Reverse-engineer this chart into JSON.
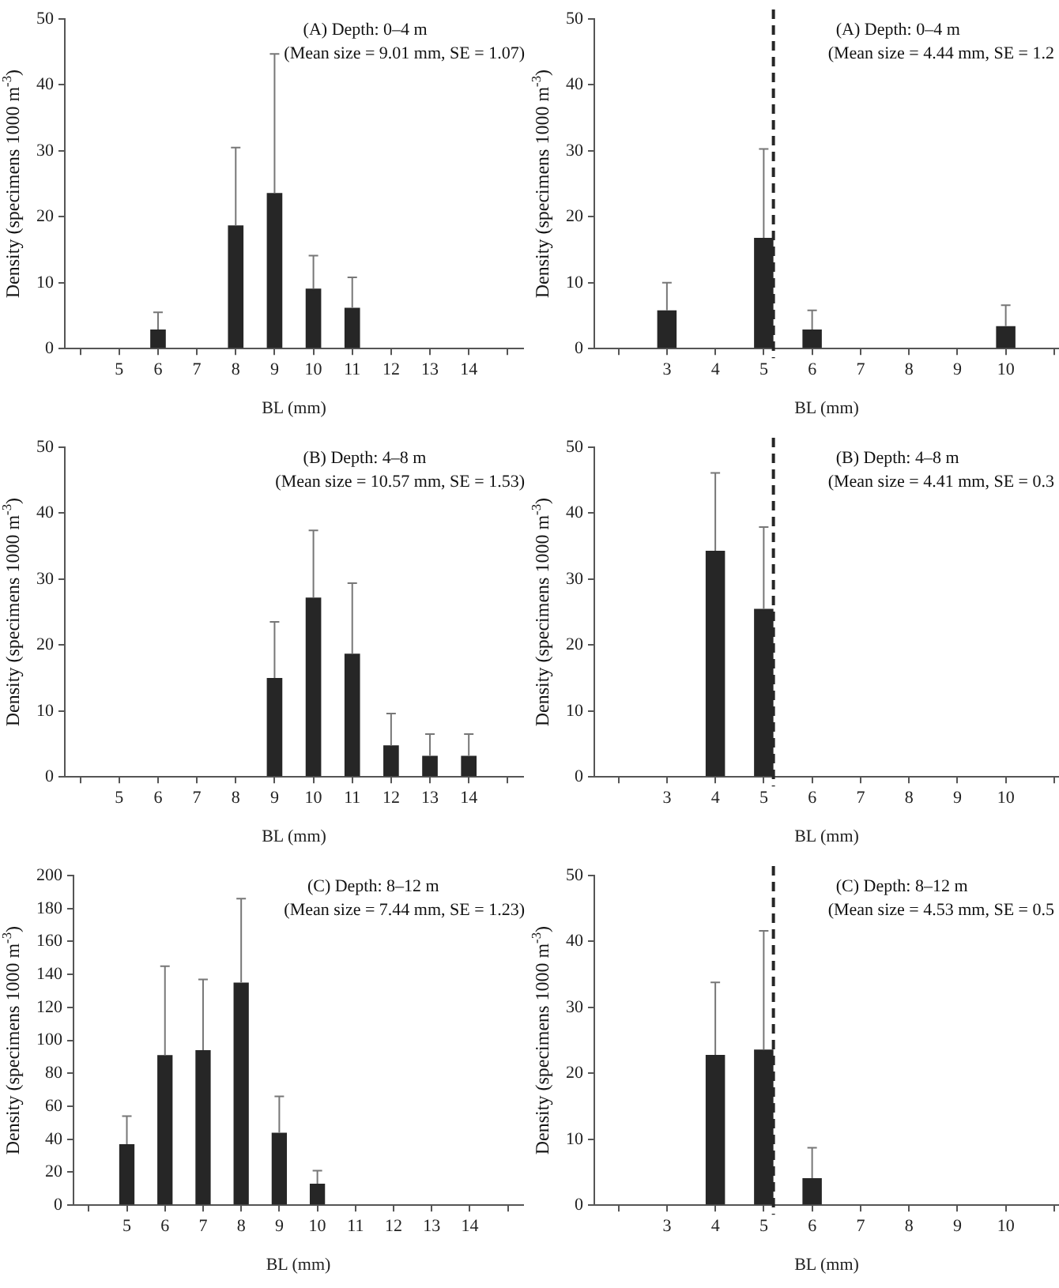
{
  "chart_data": [
    {
      "type": "bar",
      "title": "(A) Depth: 0–4 m",
      "subtitle": "(Mean size = 9.01 mm, SE = 1.07)",
      "xlabel": "BL (mm)",
      "ylabel": "Density (specimens 1000 m$^{-3}$)",
      "color": "#262626",
      "grid": false,
      "x": [
        5,
        6,
        7,
        8,
        9,
        10,
        11,
        12,
        13,
        14
      ],
      "values": [
        0,
        2.9,
        0,
        18.7,
        23.6,
        9.1,
        6.2,
        0,
        0,
        0
      ],
      "errors": [
        null,
        [
          2.9,
          5.5
        ],
        null,
        [
          18.7,
          30.5
        ],
        [
          23.6,
          44.7
        ],
        [
          9.1,
          14.1
        ],
        [
          6.2,
          10.8
        ],
        null,
        null,
        null
      ],
      "xlim": [
        3.6,
        15.4
      ],
      "xticks": [
        {
          "value": 4,
          "label": null
        },
        5,
        6,
        7,
        8,
        9,
        10,
        11,
        12,
        13,
        14,
        {
          "value": 15,
          "label": null
        }
      ],
      "ylim": [
        0,
        50
      ],
      "yticks": [
        0,
        10,
        20,
        30,
        40,
        50
      ]
    },
    {
      "type": "bar",
      "title": "(A) Depth: 0–4 m",
      "subtitle": "(Mean size = 4.44 mm, SE = 1.2",
      "xlabel": "BL (mm)",
      "ylabel": "Density (specimens 1000 m$^{-3}$)",
      "color": "#262626",
      "grid": false,
      "x": [
        3,
        4,
        5,
        6,
        7,
        8,
        9,
        10
      ],
      "values": [
        5.8,
        0,
        16.8,
        2.9,
        0,
        0,
        0,
        3.4
      ],
      "errors": [
        [
          5.8,
          10
        ],
        null,
        [
          16.8,
          30.3
        ],
        [
          2.9,
          5.8
        ],
        null,
        null,
        null,
        [
          3.4,
          6.6
        ]
      ],
      "xlim": [
        1.5,
        11.1
      ],
      "xticks": [
        {
          "value": 2,
          "label": null
        },
        3,
        4,
        5,
        6,
        7,
        8,
        9,
        10,
        {
          "value": 11,
          "label": null
        }
      ],
      "ylim": [
        0,
        50
      ],
      "yticks": [
        0,
        10,
        20,
        30,
        40,
        50
      ],
      "ref_lines": [
        {
          "axis": "x",
          "value": 5.2,
          "line_style": "dashed",
          "color": "#262626"
        }
      ]
    },
    {
      "type": "bar",
      "title": "(B) Depth: 4–8 m",
      "subtitle": "(Mean size = 10.57 mm, SE = 1.53)",
      "xlabel": "BL (mm)",
      "ylabel": "Density (specimens 1000 m$^{-3}$)",
      "color": "#262626",
      "grid": false,
      "x": [
        5,
        6,
        7,
        8,
        9,
        10,
        11,
        12,
        13,
        14
      ],
      "values": [
        0,
        0,
        0,
        0,
        15.0,
        27.2,
        18.7,
        4.8,
        3.2,
        3.2
      ],
      "errors": [
        null,
        null,
        null,
        null,
        [
          15.0,
          23.5
        ],
        [
          27.2,
          37.4
        ],
        [
          18.7,
          29.4
        ],
        [
          4.8,
          9.6
        ],
        [
          3.2,
          6.5
        ],
        [
          3.2,
          6.5
        ]
      ],
      "xlim": [
        3.6,
        15.4
      ],
      "xticks": [
        {
          "value": 4,
          "label": null
        },
        5,
        6,
        7,
        8,
        9,
        10,
        11,
        12,
        13,
        14,
        {
          "value": 15,
          "label": null
        }
      ],
      "ylim": [
        0,
        50
      ],
      "yticks": [
        0,
        10,
        20,
        30,
        40,
        50
      ]
    },
    {
      "type": "bar",
      "title": "(B) Depth: 4–8 m",
      "subtitle": "(Mean size = 4.41 mm, SE = 0.3",
      "xlabel": "BL (mm)",
      "ylabel": "Density (specimens 1000 m$^{-3}$)",
      "color": "#262626",
      "grid": false,
      "x": [
        3,
        4,
        5,
        6,
        7,
        8,
        9,
        10
      ],
      "values": [
        0,
        34.3,
        25.5,
        0,
        0,
        0,
        0,
        0
      ],
      "errors": [
        null,
        [
          34.3,
          46.1
        ],
        [
          25.5,
          37.9
        ],
        null,
        null,
        null,
        null,
        null
      ],
      "xlim": [
        1.5,
        11.1
      ],
      "xticks": [
        {
          "value": 2,
          "label": null
        },
        3,
        4,
        5,
        6,
        7,
        8,
        9,
        10,
        {
          "value": 11,
          "label": null
        }
      ],
      "ylim": [
        0,
        50
      ],
      "yticks": [
        0,
        10,
        20,
        30,
        40,
        50
      ],
      "ref_lines": [
        {
          "axis": "x",
          "value": 5.2,
          "line_style": "dashed",
          "color": "#262626"
        }
      ]
    },
    {
      "type": "bar",
      "title": "(C) Depth: 8–12 m",
      "subtitle": "(Mean size = 7.44 mm, SE = 1.23)",
      "xlabel": "BL (mm)",
      "ylabel": "Density (specimens 1000 m$^{-3}$)",
      "color": "#262626",
      "grid": false,
      "x": [
        5,
        6,
        7,
        8,
        9,
        10,
        11,
        12,
        13,
        14
      ],
      "values": [
        37,
        91,
        94,
        135,
        44,
        13,
        0,
        0,
        0,
        0
      ],
      "errors": [
        [
          37,
          54
        ],
        [
          91,
          145
        ],
        [
          94,
          137
        ],
        [
          135,
          186
        ],
        [
          44,
          66
        ],
        [
          13,
          21
        ],
        null,
        null,
        null,
        null
      ],
      "xlim": [
        3.6,
        15.4
      ],
      "xticks": [
        {
          "value": 4,
          "label": null
        },
        5,
        6,
        7,
        8,
        9,
        10,
        11,
        12,
        13,
        14,
        {
          "value": 15,
          "label": null
        }
      ],
      "ylim": [
        0,
        200
      ],
      "yticks": [
        0,
        20,
        40,
        60,
        80,
        100,
        120,
        140,
        160,
        180,
        200
      ]
    },
    {
      "type": "bar",
      "title": "(C) Depth: 8–12 m",
      "subtitle": "(Mean size = 4.53 mm, SE = 0.5",
      "xlabel": "BL (mm)",
      "ylabel": "Density (specimens 1000 m$^{-3}$)",
      "color": "#262626",
      "grid": false,
      "x": [
        3,
        4,
        5,
        6,
        7,
        8,
        9,
        10
      ],
      "values": [
        0,
        22.8,
        23.6,
        4.1,
        0,
        0,
        0,
        0
      ],
      "errors": [
        null,
        [
          22.8,
          33.8
        ],
        [
          23.6,
          41.6
        ],
        [
          4.1,
          8.7
        ],
        null,
        null,
        null,
        null
      ],
      "xlim": [
        1.5,
        11.1
      ],
      "xticks": [
        {
          "value": 2,
          "label": null
        },
        3,
        4,
        5,
        6,
        7,
        8,
        9,
        10,
        {
          "value": 11,
          "label": null
        }
      ],
      "ylim": [
        0,
        50
      ],
      "yticks": [
        0,
        10,
        20,
        30,
        40,
        50
      ],
      "ref_lines": [
        {
          "axis": "x",
          "value": 5.2,
          "line_style": "dashed",
          "color": "#262626"
        }
      ]
    }
  ]
}
